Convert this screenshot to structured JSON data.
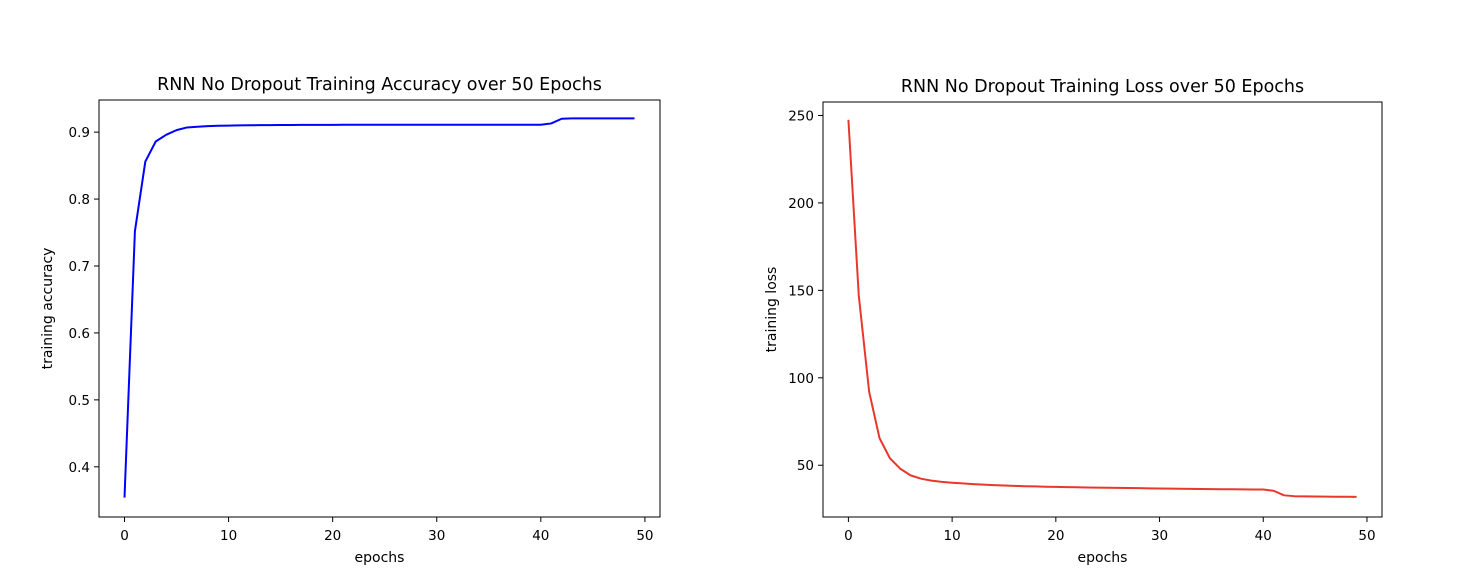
{
  "chart_data": [
    {
      "type": "line",
      "title": "RNN No Dropout Training Accuracy over 50 Epochs",
      "xlabel": "epochs",
      "ylabel": "training accuracy",
      "xlim": [
        -2.45,
        51.45
      ],
      "ylim": [
        0.325,
        0.948
      ],
      "xticks": [
        0,
        10,
        20,
        30,
        40,
        50
      ],
      "yticks": [
        0.4,
        0.5,
        0.6,
        0.7,
        0.8,
        0.9
      ],
      "xtick_labels": [
        "0",
        "10",
        "20",
        "30",
        "40",
        "50"
      ],
      "ytick_labels": [
        "0.4",
        "0.5",
        "0.6",
        "0.7",
        "0.8",
        "0.9"
      ],
      "grid": false,
      "legend": false,
      "color": "#0000ff",
      "series": [
        {
          "x": [
            0,
            1,
            2,
            3,
            4,
            5,
            6,
            7,
            8,
            9,
            10,
            11,
            12,
            13,
            14,
            15,
            16,
            17,
            18,
            19,
            20,
            21,
            22,
            23,
            24,
            25,
            26,
            27,
            28,
            29,
            30,
            31,
            32,
            33,
            34,
            35,
            36,
            37,
            38,
            39,
            40,
            41,
            42,
            43,
            44,
            45,
            46,
            47,
            48,
            49
          ],
          "values": [
            0.354,
            0.752,
            0.856,
            0.886,
            0.896,
            0.903,
            0.907,
            0.908,
            0.909,
            0.9095,
            0.9098,
            0.91,
            0.9102,
            0.9104,
            0.9105,
            0.9106,
            0.9107,
            0.9108,
            0.9108,
            0.9109,
            0.9109,
            0.911,
            0.911,
            0.911,
            0.911,
            0.911,
            0.911,
            0.911,
            0.911,
            0.911,
            0.911,
            0.911,
            0.911,
            0.911,
            0.911,
            0.911,
            0.911,
            0.911,
            0.911,
            0.911,
            0.911,
            0.913,
            0.92,
            0.9205,
            0.9205,
            0.9205,
            0.9205,
            0.9205,
            0.9205,
            0.9205
          ]
        }
      ]
    },
    {
      "type": "line",
      "title": "RNN No Dropout Training Loss over 50 Epochs",
      "xlabel": "epochs",
      "ylabel": "training loss",
      "xlim": [
        -2.45,
        51.45
      ],
      "ylim": [
        20.4,
        257.7
      ],
      "xticks": [
        0,
        10,
        20,
        30,
        40,
        50
      ],
      "yticks": [
        50,
        100,
        150,
        200,
        250
      ],
      "xtick_labels": [
        "0",
        "10",
        "20",
        "30",
        "40",
        "50"
      ],
      "ytick_labels": [
        "50",
        "100",
        "150",
        "200",
        "250"
      ],
      "grid": false,
      "legend": false,
      "color": "#e8382b",
      "series": [
        {
          "x": [
            0,
            1,
            2,
            3,
            4,
            5,
            6,
            7,
            8,
            9,
            10,
            11,
            12,
            13,
            14,
            15,
            16,
            17,
            18,
            19,
            20,
            21,
            22,
            23,
            24,
            25,
            26,
            27,
            28,
            29,
            30,
            31,
            32,
            33,
            34,
            35,
            36,
            37,
            38,
            39,
            40,
            41,
            42,
            43,
            44,
            45,
            46,
            47,
            48,
            49
          ],
          "values": [
            247.5,
            147,
            92,
            65.5,
            54,
            48,
            44.2,
            42.3,
            41.2,
            40.5,
            40,
            39.6,
            39.2,
            38.9,
            38.6,
            38.4,
            38.2,
            38,
            37.9,
            37.7,
            37.6,
            37.5,
            37.4,
            37.3,
            37.2,
            37.1,
            37.05,
            37,
            36.9,
            36.8,
            36.7,
            36.6,
            36.55,
            36.5,
            36.4,
            36.35,
            36.3,
            36.25,
            36.2,
            36.15,
            36.1,
            35.4,
            32.8,
            32.3,
            32.2,
            32.1,
            32.05,
            32,
            31.95,
            31.9
          ]
        }
      ]
    }
  ]
}
